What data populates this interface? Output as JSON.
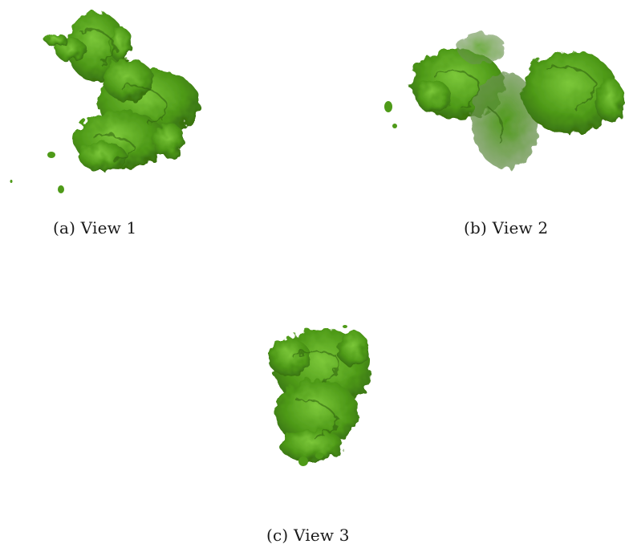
{
  "figure": {
    "render_color": "#4e9a18",
    "highlight_color": "#7cc83a",
    "shadow_color": "#2d5e0c",
    "subfigures": [
      {
        "caption": "(a) View 1",
        "image_icon": "protein-density-map-icon"
      },
      {
        "caption": "(b) View 2",
        "image_icon": "protein-density-map-icon"
      },
      {
        "caption": "(c) View 3",
        "image_icon": "protein-density-map-icon"
      }
    ]
  }
}
